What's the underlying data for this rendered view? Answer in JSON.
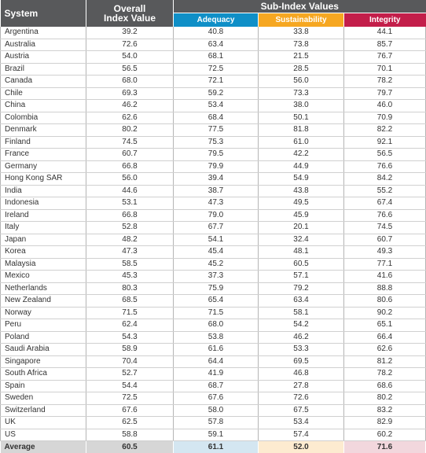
{
  "header": {
    "system": "System",
    "overall_line1": "Overall",
    "overall_line2": "Index Value",
    "sub_index": "Sub-Index Values",
    "adequacy": "Adequacy",
    "sustainability": "Sustainability",
    "integrity": "Integrity"
  },
  "colors": {
    "header_gray": "#58595b",
    "adequacy": "#0f8fc7",
    "sustainability": "#f6a721",
    "integrity": "#c31e4a"
  },
  "rows": [
    {
      "system": "Argentina",
      "overall": "39.2",
      "adequacy": "40.8",
      "sustainability": "33.8",
      "integrity": "44.1"
    },
    {
      "system": "Australia",
      "overall": "72.6",
      "adequacy": "63.4",
      "sustainability": "73.8",
      "integrity": "85.7"
    },
    {
      "system": "Austria",
      "overall": "54.0",
      "adequacy": "68.1",
      "sustainability": "21.5",
      "integrity": "76.7"
    },
    {
      "system": "Brazil",
      "overall": "56.5",
      "adequacy": "72.5",
      "sustainability": "28.5",
      "integrity": "70.1"
    },
    {
      "system": "Canada",
      "overall": "68.0",
      "adequacy": "72.1",
      "sustainability": "56.0",
      "integrity": "78.2"
    },
    {
      "system": "Chile",
      "overall": "69.3",
      "adequacy": "59.2",
      "sustainability": "73.3",
      "integrity": "79.7"
    },
    {
      "system": "China",
      "overall": "46.2",
      "adequacy": "53.4",
      "sustainability": "38.0",
      "integrity": "46.0"
    },
    {
      "system": "Colombia",
      "overall": "62.6",
      "adequacy": "68.4",
      "sustainability": "50.1",
      "integrity": "70.9"
    },
    {
      "system": "Denmark",
      "overall": "80.2",
      "adequacy": "77.5",
      "sustainability": "81.8",
      "integrity": "82.2"
    },
    {
      "system": "Finland",
      "overall": "74.5",
      "adequacy": "75.3",
      "sustainability": "61.0",
      "integrity": "92.1"
    },
    {
      "system": "France",
      "overall": "60.7",
      "adequacy": "79.5",
      "sustainability": "42.2",
      "integrity": "56.5"
    },
    {
      "system": "Germany",
      "overall": "66.8",
      "adequacy": "79.9",
      "sustainability": "44.9",
      "integrity": "76.6"
    },
    {
      "system": "Hong Kong SAR",
      "overall": "56.0",
      "adequacy": "39.4",
      "sustainability": "54.9",
      "integrity": "84.2"
    },
    {
      "system": "India",
      "overall": "44.6",
      "adequacy": "38.7",
      "sustainability": "43.8",
      "integrity": "55.2"
    },
    {
      "system": "Indonesia",
      "overall": "53.1",
      "adequacy": "47.3",
      "sustainability": "49.5",
      "integrity": "67.4"
    },
    {
      "system": "Ireland",
      "overall": "66.8",
      "adequacy": "79.0",
      "sustainability": "45.9",
      "integrity": "76.6"
    },
    {
      "system": "Italy",
      "overall": "52.8",
      "adequacy": "67.7",
      "sustainability": "20.1",
      "integrity": "74.5"
    },
    {
      "system": "Japan",
      "overall": "48.2",
      "adequacy": "54.1",
      "sustainability": "32.4",
      "integrity": "60.7"
    },
    {
      "system": "Korea",
      "overall": "47.3",
      "adequacy": "45.4",
      "sustainability": "48.1",
      "integrity": "49.3"
    },
    {
      "system": "Malaysia",
      "overall": "58.5",
      "adequacy": "45.2",
      "sustainability": "60.5",
      "integrity": "77.1"
    },
    {
      "system": "Mexico",
      "overall": "45.3",
      "adequacy": "37.3",
      "sustainability": "57.1",
      "integrity": "41.6"
    },
    {
      "system": "Netherlands",
      "overall": "80.3",
      "adequacy": "75.9",
      "sustainability": "79.2",
      "integrity": "88.8"
    },
    {
      "system": "New Zealand",
      "overall": "68.5",
      "adequacy": "65.4",
      "sustainability": "63.4",
      "integrity": "80.6"
    },
    {
      "system": "Norway",
      "overall": "71.5",
      "adequacy": "71.5",
      "sustainability": "58.1",
      "integrity": "90.2"
    },
    {
      "system": "Peru",
      "overall": "62.4",
      "adequacy": "68.0",
      "sustainability": "54.2",
      "integrity": "65.1"
    },
    {
      "system": "Poland",
      "overall": "54.3",
      "adequacy": "53.8",
      "sustainability": "46.2",
      "integrity": "66.4"
    },
    {
      "system": "Saudi Arabia",
      "overall": "58.9",
      "adequacy": "61.6",
      "sustainability": "53.3",
      "integrity": "62.6"
    },
    {
      "system": "Singapore",
      "overall": "70.4",
      "adequacy": "64.4",
      "sustainability": "69.5",
      "integrity": "81.2"
    },
    {
      "system": "South Africa",
      "overall": "52.7",
      "adequacy": "41.9",
      "sustainability": "46.8",
      "integrity": "78.2"
    },
    {
      "system": "Spain",
      "overall": "54.4",
      "adequacy": "68.7",
      "sustainability": "27.8",
      "integrity": "68.6"
    },
    {
      "system": "Sweden",
      "overall": "72.5",
      "adequacy": "67.6",
      "sustainability": "72.6",
      "integrity": "80.2"
    },
    {
      "system": "Switzerland",
      "overall": "67.6",
      "adequacy": "58.0",
      "sustainability": "67.5",
      "integrity": "83.2"
    },
    {
      "system": "UK",
      "overall": "62.5",
      "adequacy": "57.8",
      "sustainability": "53.4",
      "integrity": "82.9"
    },
    {
      "system": "US",
      "overall": "58.8",
      "adequacy": "59.1",
      "sustainability": "57.4",
      "integrity": "60.2"
    }
  ],
  "average": {
    "label": "Average",
    "overall": "60.5",
    "adequacy": "61.1",
    "sustainability": "52.0",
    "integrity": "71.6"
  }
}
